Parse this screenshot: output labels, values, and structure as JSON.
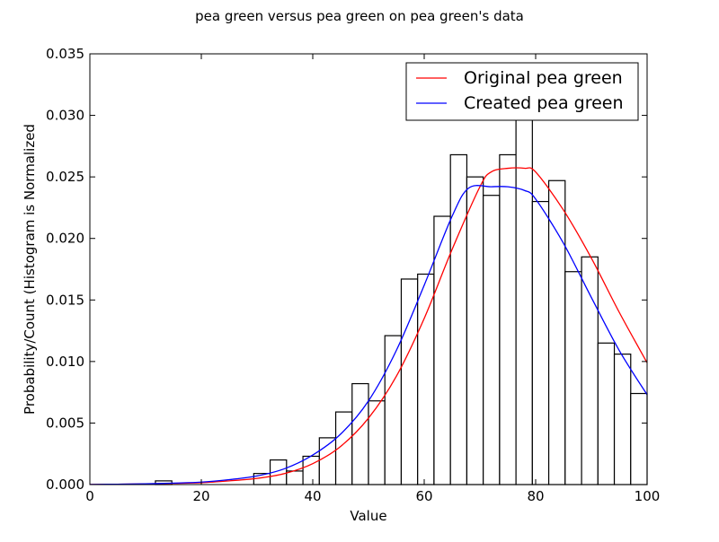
{
  "chart_data": {
    "type": "histogram",
    "title": "pea green versus pea green on pea green's data",
    "xlabel": "Value",
    "ylabel": "Probability/Count (Histogram is Normalized",
    "xlim": [
      0,
      100
    ],
    "ylim": [
      0,
      0.035
    ],
    "xticks": [
      "0",
      "20",
      "40",
      "60",
      "80",
      "100"
    ],
    "yticks": [
      "0.000",
      "0.005",
      "0.010",
      "0.015",
      "0.020",
      "0.025",
      "0.030",
      "0.035"
    ],
    "grid": false,
    "legend_position": "top-right",
    "histogram": {
      "bin_edges": [
        0,
        2.94,
        5.88,
        8.82,
        11.76,
        14.71,
        17.65,
        20.59,
        23.53,
        26.47,
        29.41,
        32.35,
        35.29,
        38.24,
        41.18,
        44.12,
        47.06,
        50.0,
        52.94,
        55.88,
        58.82,
        61.76,
        64.71,
        67.65,
        70.59,
        73.53,
        76.47,
        79.41,
        82.35,
        85.29,
        88.24,
        91.18,
        94.12,
        97.06,
        100
      ],
      "values": [
        0,
        0,
        0,
        0,
        0.0003,
        0,
        0,
        0,
        0,
        0,
        0.0009,
        0.002,
        0.0011,
        0.0023,
        0.0038,
        0.0059,
        0.0082,
        0.0068,
        0.0121,
        0.0167,
        0.0171,
        0.0218,
        0.0268,
        0.025,
        0.0235,
        0.0268,
        0.0302,
        0.023,
        0.0247,
        0.0173,
        0.0185,
        0.0115,
        0.0106,
        0.0074
      ]
    },
    "series": [
      {
        "name": "Original pea green",
        "color": "#ff0000",
        "x": [
          0,
          5,
          10,
          15,
          20,
          25,
          30,
          35,
          40,
          45,
          50,
          55,
          60,
          65,
          70,
          72,
          75,
          78,
          80,
          85,
          90,
          95,
          100
        ],
        "y": [
          1e-05,
          3e-05,
          5e-05,
          0.0001,
          0.00015,
          0.0003,
          0.0005,
          0.0009,
          0.0017,
          0.0031,
          0.0054,
          0.0088,
          0.0135,
          0.0191,
          0.0242,
          0.0254,
          0.0257,
          0.0257,
          0.0254,
          0.0223,
          0.0184,
          0.014,
          0.0099
        ]
      },
      {
        "name": "Created pea green",
        "color": "#0000ff",
        "x": [
          0,
          5,
          10,
          15,
          20,
          25,
          30,
          35,
          40,
          45,
          50,
          55,
          60,
          65,
          68,
          72,
          75,
          78,
          80,
          85,
          90,
          95,
          100
        ],
        "y": [
          1e-05,
          3e-05,
          6e-05,
          0.00012,
          0.0002,
          0.0004,
          0.0007,
          0.0013,
          0.0024,
          0.0041,
          0.0068,
          0.0109,
          0.0162,
          0.0218,
          0.0241,
          0.0242,
          0.0242,
          0.0239,
          0.0232,
          0.0196,
          0.0152,
          0.0109,
          0.0073
        ]
      }
    ]
  }
}
